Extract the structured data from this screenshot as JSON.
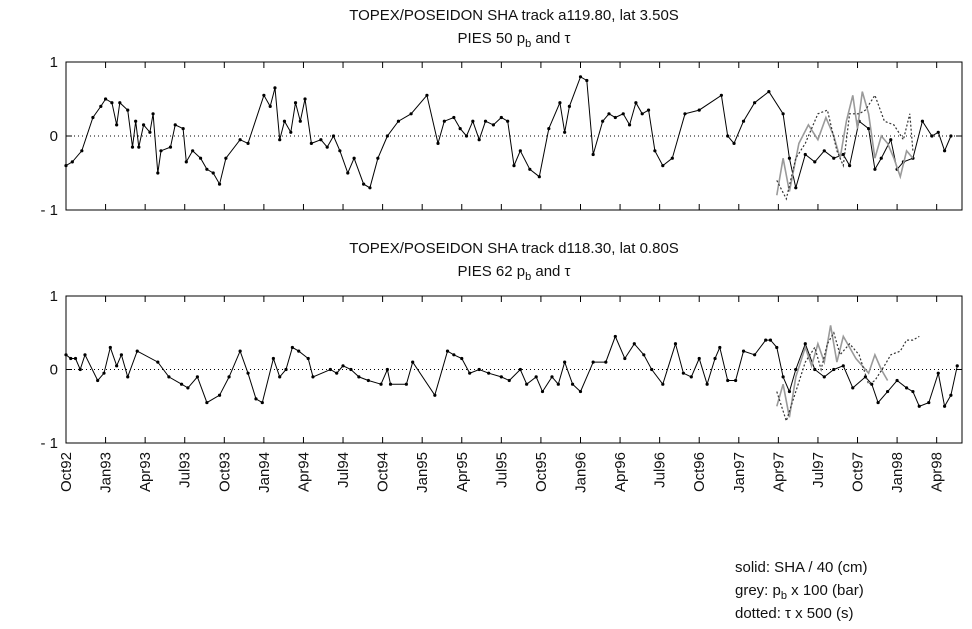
{
  "chart_data": [
    {
      "type": "line",
      "title": "TOPEX/POSEIDON SHA track  a119.80, lat 3.50S",
      "subtitle": [
        "PIES 50 p",
        "b",
        " and τ"
      ],
      "xlim": [
        1992.75,
        1998.41
      ],
      "ylim": [
        -1,
        1
      ],
      "yticks": [
        {
          "value": -1,
          "label": "- 1"
        },
        0,
        1
      ],
      "xticks": [
        1992.75,
        1993.0,
        1993.25,
        1993.5,
        1993.75,
        1994.0,
        1994.25,
        1994.5,
        1994.75,
        1995.0,
        1995.25,
        1995.5,
        1995.75,
        1996.0,
        1996.25,
        1996.5,
        1996.75,
        1997.0,
        1997.25,
        1997.5,
        1997.75,
        1998.0,
        1998.25
      ],
      "zero_line": true,
      "series": [
        {
          "style": "solid",
          "color": "#000000",
          "markers": true,
          "x": [
            1992.75,
            1992.79,
            1992.85,
            1992.92,
            1992.97,
            1993.0,
            1993.04,
            1993.07,
            1993.09,
            1993.14,
            1993.17,
            1993.19,
            1993.21,
            1993.24,
            1993.28,
            1993.3,
            1993.33,
            1993.35,
            1993.41,
            1993.44,
            1993.49,
            1993.51,
            1993.55,
            1993.6,
            1993.64,
            1993.68,
            1993.72,
            1993.76,
            1993.85,
            1993.9,
            1994.0,
            1994.04,
            1994.07,
            1994.1,
            1994.13,
            1994.17,
            1994.2,
            1994.23,
            1994.26,
            1994.3,
            1994.36,
            1994.4,
            1994.44,
            1994.48,
            1994.53,
            1994.57,
            1994.63,
            1994.67,
            1994.72,
            1994.78,
            1994.85,
            1994.93,
            1995.03,
            1995.1,
            1995.14,
            1995.2,
            1995.24,
            1995.28,
            1995.32,
            1995.36,
            1995.4,
            1995.45,
            1995.5,
            1995.54,
            1995.58,
            1995.62,
            1995.68,
            1995.74,
            1995.8,
            1995.87,
            1995.9,
            1995.93,
            1996.0,
            1996.04,
            1996.08,
            1996.14,
            1996.18,
            1996.22,
            1996.27,
            1996.31,
            1996.35,
            1996.39,
            1996.43,
            1996.47,
            1996.52,
            1996.58,
            1996.66,
            1996.75,
            1996.89,
            1996.93,
            1996.97,
            1997.03,
            1997.1,
            1997.19,
            1997.28,
            1997.32,
            1997.36,
            1997.42,
            1997.48,
            1997.54,
            1997.6,
            1997.66,
            1997.7,
            1997.76,
            1997.82,
            1997.86,
            1997.9,
            1997.96,
            1998.0,
            1998.04,
            1998.1,
            1998.16,
            1998.22,
            1998.26,
            1998.3,
            1998.34
          ],
          "values": [
            -0.4,
            -0.35,
            -0.2,
            0.25,
            0.4,
            0.5,
            0.45,
            0.15,
            0.45,
            0.35,
            -0.15,
            0.2,
            -0.15,
            0.15,
            0.05,
            0.3,
            -0.5,
            -0.2,
            -0.15,
            0.15,
            0.1,
            -0.35,
            -0.2,
            -0.3,
            -0.45,
            -0.5,
            -0.65,
            -0.3,
            -0.05,
            -0.1,
            0.55,
            0.4,
            0.65,
            -0.05,
            0.2,
            0.05,
            0.45,
            0.2,
            0.5,
            -0.1,
            -0.05,
            -0.15,
            0.0,
            -0.2,
            -0.5,
            -0.3,
            -0.65,
            -0.7,
            -0.3,
            0.0,
            0.2,
            0.3,
            0.55,
            -0.1,
            0.2,
            0.25,
            0.1,
            0.0,
            0.2,
            -0.05,
            0.2,
            0.15,
            0.25,
            0.2,
            -0.4,
            -0.2,
            -0.45,
            -0.55,
            0.1,
            0.45,
            0.05,
            0.4,
            0.8,
            0.75,
            -0.25,
            0.2,
            0.3,
            0.25,
            0.3,
            0.15,
            0.45,
            0.3,
            0.35,
            -0.2,
            -0.4,
            -0.3,
            0.3,
            0.35,
            0.55,
            0.0,
            -0.1,
            0.2,
            0.45,
            0.6,
            0.3,
            -0.3,
            -0.7,
            -0.25,
            -0.35,
            -0.2,
            -0.3,
            -0.25,
            -0.4,
            0.2,
            0.1,
            -0.45,
            -0.3,
            -0.05,
            -0.45,
            -0.35,
            -0.3,
            0.2,
            0.0,
            0.05,
            -0.2,
            0.0
          ]
        },
        {
          "style": "grey",
          "color": "#9a9a9a",
          "markers": false,
          "x": [
            1997.24,
            1997.28,
            1997.32,
            1997.38,
            1997.44,
            1997.5,
            1997.55,
            1997.6,
            1997.64,
            1997.68,
            1997.72,
            1997.75,
            1997.78,
            1997.82,
            1997.86,
            1997.9,
            1997.94,
            1997.98,
            1998.02,
            1998.06,
            1998.1
          ],
          "values": [
            -0.8,
            -0.3,
            -0.75,
            -0.1,
            0.15,
            -0.05,
            0.25,
            0.0,
            -0.3,
            0.2,
            0.55,
            0.1,
            0.6,
            0.3,
            -0.3,
            0.0,
            -0.1,
            -0.3,
            -0.55,
            -0.2,
            -0.3
          ]
        },
        {
          "style": "dotted",
          "color": "#333333",
          "markers": false,
          "x": [
            1997.24,
            1997.3,
            1997.36,
            1997.42,
            1997.5,
            1997.56,
            1997.62,
            1997.66,
            1997.7,
            1997.76,
            1997.8,
            1997.86,
            1997.92,
            1997.98,
            1998.04,
            1998.08,
            1998.1
          ],
          "values": [
            -0.6,
            -0.85,
            -0.3,
            -0.1,
            0.3,
            0.35,
            -0.2,
            -0.4,
            0.3,
            0.3,
            0.35,
            0.55,
            0.2,
            0.15,
            -0.05,
            0.3,
            -0.2
          ]
        }
      ]
    },
    {
      "type": "line",
      "title": "TOPEX/POSEIDON SHA track  d118.30, lat 0.80S",
      "subtitle": [
        "PIES 62 p",
        "b",
        " and τ"
      ],
      "xlim": [
        1992.75,
        1998.41
      ],
      "ylim": [
        -1,
        1
      ],
      "yticks": [
        {
          "value": -1,
          "label": "- 1"
        },
        0,
        1
      ],
      "xticks": [
        {
          "value": 1992.75,
          "label": "Oct92"
        },
        {
          "value": 1993.0,
          "label": "Jan93"
        },
        {
          "value": 1993.25,
          "label": "Apr93"
        },
        {
          "value": 1993.5,
          "label": "Jul93"
        },
        {
          "value": 1993.75,
          "label": "Oct93"
        },
        {
          "value": 1994.0,
          "label": "Jan94"
        },
        {
          "value": 1994.25,
          "label": "Apr94"
        },
        {
          "value": 1994.5,
          "label": "Jul94"
        },
        {
          "value": 1994.75,
          "label": "Oct94"
        },
        {
          "value": 1995.0,
          "label": "Jan95"
        },
        {
          "value": 1995.25,
          "label": "Apr95"
        },
        {
          "value": 1995.5,
          "label": "Jul95"
        },
        {
          "value": 1995.75,
          "label": "Oct95"
        },
        {
          "value": 1996.0,
          "label": "Jan96"
        },
        {
          "value": 1996.25,
          "label": "Apr96"
        },
        {
          "value": 1996.5,
          "label": "Jul96"
        },
        {
          "value": 1996.75,
          "label": "Oct96"
        },
        {
          "value": 1997.0,
          "label": "Jan97"
        },
        {
          "value": 1997.25,
          "label": "Apr97"
        },
        {
          "value": 1997.5,
          "label": "Jul97"
        },
        {
          "value": 1997.75,
          "label": "Oct97"
        },
        {
          "value": 1998.0,
          "label": "Jan98"
        },
        {
          "value": 1998.25,
          "label": "Apr98"
        }
      ],
      "zero_line": true,
      "series": [
        {
          "style": "solid",
          "color": "#000000",
          "markers": true,
          "x": [
            1992.75,
            1992.78,
            1992.81,
            1992.84,
            1992.87,
            1992.95,
            1992.99,
            1993.03,
            1993.07,
            1993.1,
            1993.14,
            1993.2,
            1993.33,
            1993.4,
            1993.48,
            1993.52,
            1993.58,
            1993.64,
            1993.72,
            1993.78,
            1993.85,
            1993.9,
            1993.95,
            1993.99,
            1994.06,
            1994.1,
            1994.14,
            1994.18,
            1994.22,
            1994.28,
            1994.31,
            1994.42,
            1994.46,
            1994.5,
            1994.55,
            1994.6,
            1994.66,
            1994.74,
            1994.78,
            1994.8,
            1994.9,
            1994.94,
            1995.08,
            1995.16,
            1995.2,
            1995.25,
            1995.3,
            1995.36,
            1995.42,
            1995.5,
            1995.55,
            1995.62,
            1995.66,
            1995.72,
            1995.76,
            1995.82,
            1995.86,
            1995.9,
            1995.95,
            1996.0,
            1996.08,
            1996.16,
            1996.22,
            1996.28,
            1996.34,
            1996.4,
            1996.45,
            1996.52,
            1996.6,
            1996.65,
            1996.7,
            1996.75,
            1996.8,
            1996.85,
            1996.88,
            1996.93,
            1996.98,
            1997.03,
            1997.1,
            1997.17,
            1997.2,
            1997.24,
            1997.28,
            1997.32,
            1997.36,
            1997.42,
            1997.48,
            1997.54,
            1997.6,
            1997.66,
            1997.72,
            1997.8,
            1997.84,
            1997.88,
            1997.94,
            1998.0,
            1998.06,
            1998.1,
            1998.14,
            1998.2,
            1998.26,
            1998.3,
            1998.34,
            1998.38
          ],
          "values": [
            0.2,
            0.15,
            0.15,
            0.0,
            0.2,
            -0.15,
            -0.05,
            0.3,
            0.05,
            0.2,
            -0.1,
            0.25,
            0.1,
            -0.1,
            -0.2,
            -0.25,
            -0.1,
            -0.45,
            -0.35,
            -0.1,
            0.25,
            -0.05,
            -0.4,
            -0.45,
            0.15,
            -0.1,
            0.0,
            0.3,
            0.25,
            0.15,
            -0.1,
            0.0,
            -0.05,
            0.05,
            0.0,
            -0.1,
            -0.15,
            -0.2,
            0.0,
            -0.2,
            -0.2,
            0.1,
            -0.35,
            0.25,
            0.2,
            0.15,
            -0.05,
            0.0,
            -0.05,
            -0.1,
            -0.15,
            0.0,
            -0.2,
            -0.1,
            -0.3,
            -0.1,
            -0.2,
            0.1,
            -0.2,
            -0.3,
            0.1,
            0.1,
            0.45,
            0.15,
            0.35,
            0.2,
            0.0,
            -0.2,
            0.35,
            -0.05,
            -0.1,
            0.15,
            -0.2,
            0.15,
            0.3,
            -0.15,
            -0.15,
            0.25,
            0.2,
            0.4,
            0.4,
            0.3,
            -0.1,
            -0.3,
            0.0,
            0.35,
            0.0,
            -0.1,
            0.0,
            0.05,
            -0.25,
            -0.1,
            -0.2,
            -0.45,
            -0.3,
            -0.15,
            -0.25,
            -0.3,
            -0.5,
            -0.45,
            -0.05,
            -0.5,
            -0.35,
            0.05
          ]
        },
        {
          "style": "grey",
          "color": "#9a9a9a",
          "markers": false,
          "x": [
            1997.24,
            1997.28,
            1997.32,
            1997.36,
            1997.42,
            1997.46,
            1997.5,
            1997.54,
            1997.58,
            1997.62,
            1997.66,
            1997.7,
            1997.74,
            1997.78,
            1997.82,
            1997.86,
            1997.9,
            1997.94
          ],
          "values": [
            -0.5,
            -0.2,
            -0.65,
            -0.1,
            0.3,
            0.05,
            0.35,
            0.1,
            0.6,
            0.1,
            0.45,
            0.3,
            0.15,
            0.05,
            -0.05,
            0.2,
            0.0,
            -0.15
          ]
        },
        {
          "style": "dotted",
          "color": "#333333",
          "markers": false,
          "x": [
            1997.24,
            1997.3,
            1997.36,
            1997.42,
            1997.48,
            1997.52,
            1997.56,
            1997.6,
            1997.64,
            1997.7,
            1997.76,
            1997.82,
            1997.86,
            1997.92,
            1997.96,
            1998.02,
            1998.06,
            1998.1,
            1998.14
          ],
          "values": [
            -0.3,
            -0.7,
            -0.3,
            0.1,
            0.3,
            0.0,
            0.35,
            0.5,
            0.2,
            0.35,
            0.2,
            -0.2,
            -0.15,
            0.05,
            0.2,
            0.25,
            0.4,
            0.4,
            0.45
          ]
        }
      ]
    }
  ],
  "note": [
    [
      "solid: SHA / 40 (cm)"
    ],
    [
      "grey:  p",
      "b",
      " x 100 (bar)"
    ],
    [
      "dotted: τ x 500 (s)"
    ]
  ]
}
